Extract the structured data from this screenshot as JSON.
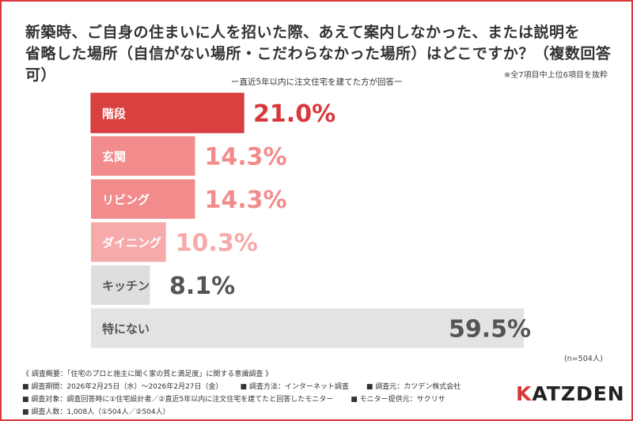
{
  "title_line1": "新築時、ご自身の住まいに人を招いた際、あえて案内しなかった、または説明を",
  "title_line2": "省略した場所（自信がない場所・こだわらなかった場所）はどこですか？（複数回答可）",
  "subtitle": "ー直近5年以内に注文住宅を建てた方が回答ー",
  "note": "※全7項目中上位6項目を抜粋",
  "sample": "(n=504人)",
  "chart_data": {
    "type": "bar",
    "orientation": "horizontal",
    "categories": [
      "階段",
      "玄関",
      "リビング",
      "ダイニング",
      "キッチン",
      "特にない"
    ],
    "values": [
      21.0,
      14.3,
      14.3,
      10.3,
      8.1,
      59.5
    ],
    "labels": [
      "21.0%",
      "14.3%",
      "14.3%",
      "10.3%",
      "8.1%",
      "59.5%"
    ],
    "bar_colors": [
      "#d9403f",
      "#f28b8b",
      "#f28b8b",
      "#f6aaaa",
      "#dedede",
      "#e3e3e3"
    ],
    "label_colors": [
      "#d9383a",
      "#f28b8b",
      "#f28b8b",
      "#f6aaaa",
      "#555555",
      "#555555"
    ],
    "xlim": [
      0,
      59.5
    ],
    "grid": false
  },
  "footer": {
    "overview": "《 調査概要：「住宅のプロと施主に聞く家の質と満足度」に関する意識調査 》",
    "period": "■ 調査期間：2026年2月25日（水）～2026年2月27日（金）",
    "method": "■ 調査方法：インターネット調査",
    "source": "■ 調査元：カツデン株式会社",
    "target": "■ 調査対象：調査回答時に①住宅設計者／②直近5年以内に注文住宅を建てたと回答したモニター",
    "provider": "■ モニター提供元：サクリサ",
    "count": "■ 調査人数：1,008人（①504人／②504人）"
  },
  "logo": {
    "k": "K",
    "rest": "ATZDEN"
  }
}
